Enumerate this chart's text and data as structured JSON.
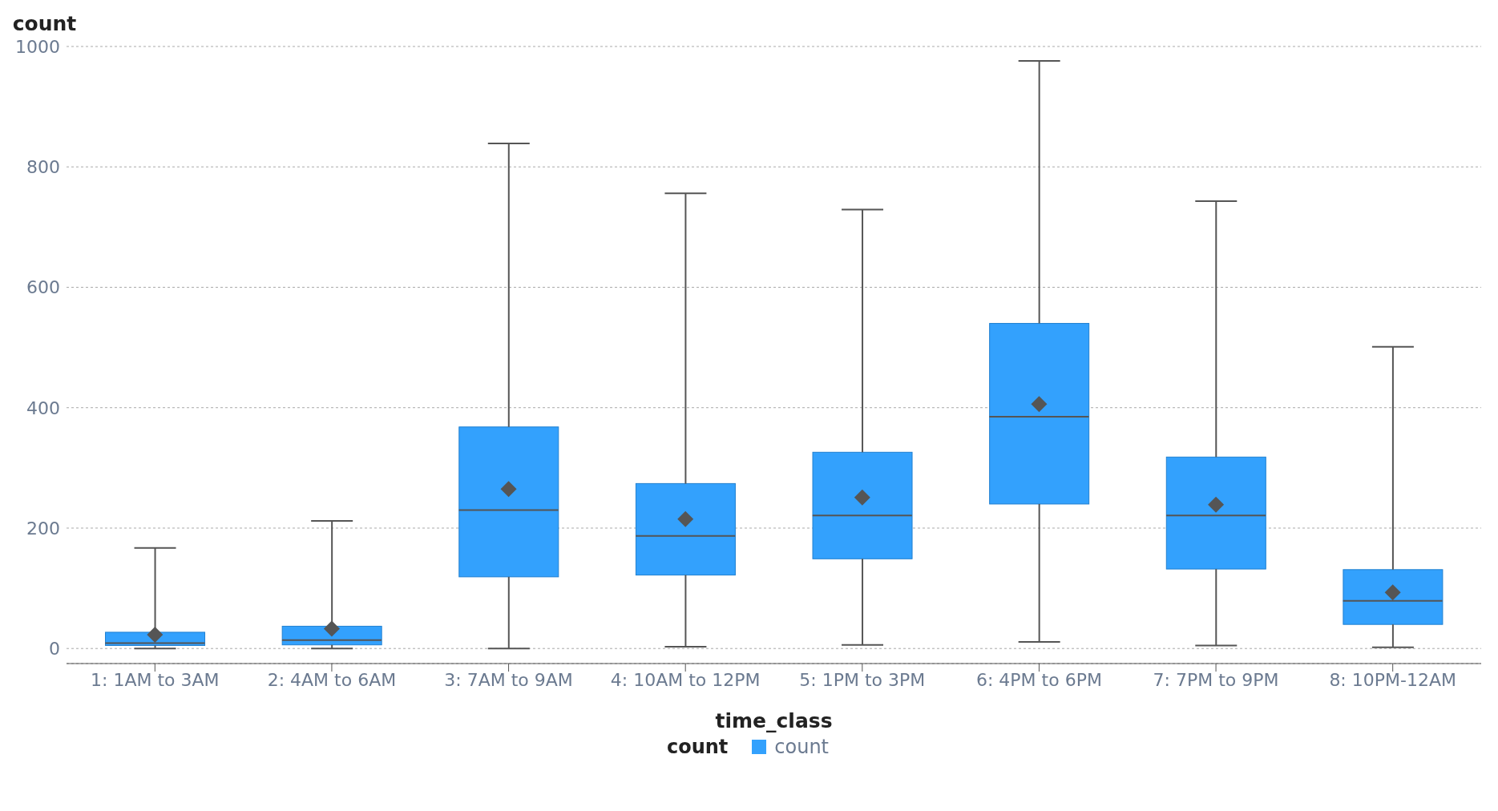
{
  "chart_data": {
    "type": "box",
    "xlabel": "time_class",
    "ylabel": "count",
    "legend_title": "count",
    "categories": [
      "1: 1AM to 3AM",
      "2: 4AM to 6AM",
      "3: 7AM to 9AM",
      "4: 10AM to 12PM",
      "5: 1PM to 3PM",
      "6: 4PM to 6PM",
      "7: 7PM to 9PM",
      "8: 10PM-12AM"
    ],
    "series": [
      {
        "name": "count",
        "color": "#33a1fd",
        "boxes": [
          {
            "low": 0,
            "q1": 5,
            "median": 9,
            "q3": 27,
            "high": 167,
            "mean": 23
          },
          {
            "low": 0,
            "q1": 6,
            "median": 14,
            "q3": 37,
            "high": 212,
            "mean": 33
          },
          {
            "low": 0,
            "q1": 119,
            "median": 230,
            "q3": 368,
            "high": 839,
            "mean": 265
          },
          {
            "low": 3,
            "q1": 122,
            "median": 187,
            "q3": 274,
            "high": 756,
            "mean": 215
          },
          {
            "low": 6,
            "q1": 149,
            "median": 221,
            "q3": 326,
            "high": 729,
            "mean": 251
          },
          {
            "low": 11,
            "q1": 240,
            "median": 385,
            "q3": 540,
            "high": 976,
            "mean": 406
          },
          {
            "low": 5,
            "q1": 132,
            "median": 221,
            "q3": 318,
            "high": 743,
            "mean": 239
          },
          {
            "low": 2,
            "q1": 40,
            "median": 79,
            "q3": 131,
            "high": 501,
            "mean": 93
          }
        ]
      }
    ],
    "ylim": [
      -25,
      1000
    ],
    "yticks": [
      0,
      200,
      400,
      600,
      800,
      1000
    ],
    "grid": "y",
    "legend": "bottom",
    "marker": "diamond"
  }
}
